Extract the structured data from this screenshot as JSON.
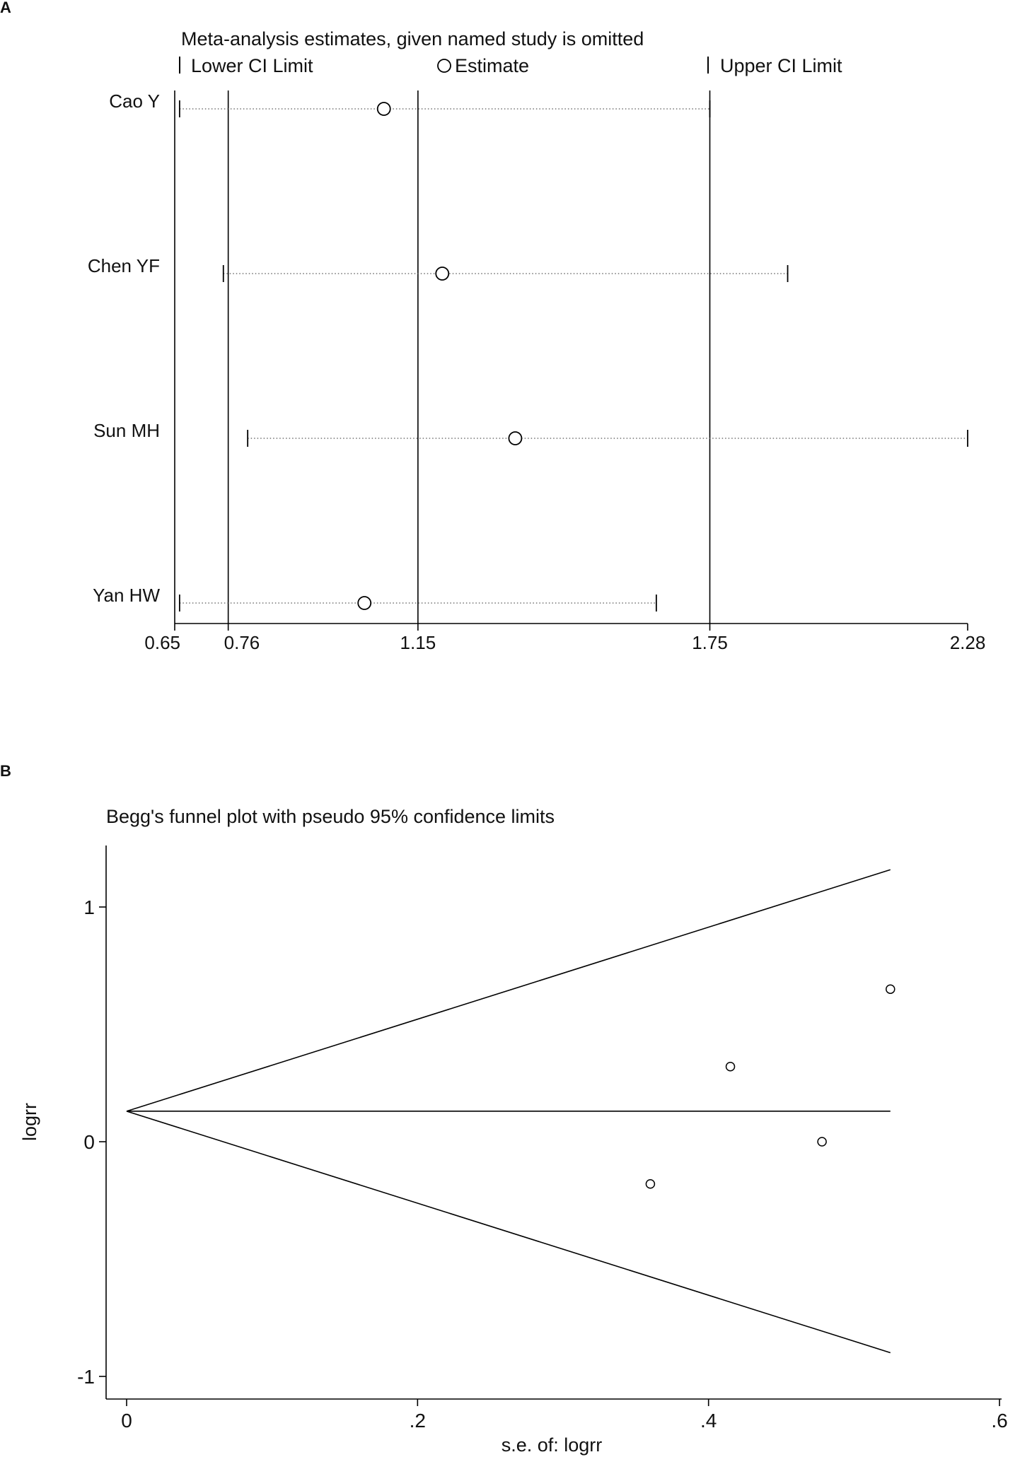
{
  "panels": {
    "a": "A",
    "b": "B"
  },
  "chart_data": [
    {
      "type": "scatter",
      "title": "Meta-analysis estimates, given named study is omitted",
      "legend": {
        "lower": "Lower CI Limit",
        "estimate": "Estimate",
        "upper": "Upper CI Limit",
        "placement": "top"
      },
      "studies": [
        {
          "name": "Cao Y",
          "lower": 0.66,
          "estimate": 1.08,
          "upper": 1.75
        },
        {
          "name": "Chen YF",
          "lower": 0.75,
          "estimate": 1.2,
          "upper": 1.91
        },
        {
          "name": "Sun MH",
          "lower": 0.8,
          "estimate": 1.35,
          "upper": 2.28
        },
        {
          "name": "Yan HW",
          "lower": 0.66,
          "estimate": 1.04,
          "upper": 1.64
        }
      ],
      "xticks": [
        "0.65",
        "0.76",
        "1.15",
        "1.75",
        "2.28"
      ],
      "xtick_values": [
        0.65,
        0.76,
        1.15,
        1.75,
        2.28
      ],
      "reference_lines": [
        0.76,
        1.15,
        1.75
      ],
      "xlim": [
        0.65,
        2.28
      ]
    },
    {
      "type": "scatter",
      "title": "Begg's funnel plot with pseudo 95% confidence limits",
      "xlabel": "s.e. of: logrr",
      "ylabel": "logrr",
      "xticks": [
        "0",
        ".2",
        ".4",
        ".6"
      ],
      "xtick_values": [
        0,
        0.2,
        0.4,
        0.6
      ],
      "yticks": [
        "-1",
        "0",
        "1"
      ],
      "ytick_values": [
        -1,
        0,
        1
      ],
      "xlim": [
        0,
        0.6
      ],
      "ylim": [
        -1,
        1
      ],
      "pooled_estimate": 0.13,
      "funnel_max_se": 0.525,
      "points": [
        {
          "x": 0.36,
          "y": -0.18
        },
        {
          "x": 0.415,
          "y": 0.32
        },
        {
          "x": 0.478,
          "y": 0.0
        },
        {
          "x": 0.525,
          "y": 0.65
        }
      ]
    }
  ]
}
